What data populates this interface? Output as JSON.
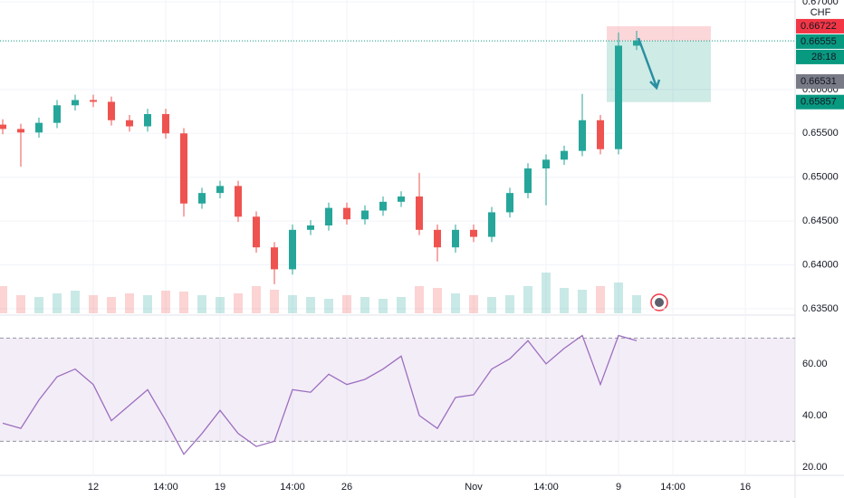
{
  "chart_data": {
    "type": "candlestick",
    "currency": "CHF",
    "categories": [
      null,
      null,
      null,
      null,
      null,
      "12",
      null,
      null,
      null,
      "14:00",
      null,
      null,
      "19",
      null,
      null,
      null,
      "14:00",
      null,
      null,
      "26",
      null,
      null,
      null,
      null,
      null,
      null,
      "Nov",
      null,
      null,
      null,
      "14:00",
      null,
      null,
      null,
      "9",
      null,
      null,
      "14:00",
      null,
      null,
      null,
      "16"
    ],
    "open": [
      0.656,
      0.6555,
      0.6551,
      0.6562,
      0.6582,
      0.6588,
      0.6586,
      0.6565,
      0.6558,
      0.6572,
      0.655,
      0.647,
      0.6482,
      0.649,
      0.6455,
      0.642,
      0.6395,
      0.644,
      0.6445,
      0.6465,
      0.6452,
      0.6462,
      0.6472,
      0.6478,
      0.644,
      0.642,
      0.644,
      0.6432,
      0.646,
      0.6482,
      0.651,
      0.652,
      0.653,
      0.6565,
      0.6532,
      0.665,
      null,
      null,
      null,
      null,
      null,
      null
    ],
    "high": [
      0.6566,
      0.6561,
      0.6568,
      0.6588,
      0.6594,
      0.6594,
      0.6592,
      0.6571,
      0.6578,
      0.6578,
      0.6556,
      0.6488,
      0.6496,
      0.6496,
      0.6461,
      0.6426,
      0.6446,
      0.6451,
      0.6471,
      0.6471,
      0.6468,
      0.6478,
      0.6484,
      0.6505,
      0.6446,
      0.6446,
      0.6446,
      0.6466,
      0.6488,
      0.6516,
      0.6526,
      0.6536,
      0.6595,
      0.6571,
      0.6665,
      0.6667,
      null,
      null,
      null,
      null,
      null,
      null
    ],
    "low": [
      0.6549,
      0.6512,
      0.6545,
      0.6556,
      0.6576,
      0.658,
      0.6559,
      0.6552,
      0.6552,
      0.6544,
      0.6455,
      0.6464,
      0.6476,
      0.6449,
      0.6414,
      0.6378,
      0.6389,
      0.6434,
      0.6439,
      0.6446,
      0.6446,
      0.6456,
      0.6466,
      0.6434,
      0.6404,
      0.6414,
      0.6426,
      0.6426,
      0.6454,
      0.6476,
      0.6468,
      0.6514,
      0.6524,
      0.6526,
      0.6526,
      0.6645,
      null,
      null,
      null,
      null,
      null,
      null
    ],
    "close": [
      0.6555,
      0.6551,
      0.6562,
      0.6582,
      0.6588,
      0.6586,
      0.6565,
      0.6558,
      0.6572,
      0.655,
      0.647,
      0.6482,
      0.649,
      0.6455,
      0.642,
      0.6395,
      0.644,
      0.6445,
      0.6465,
      0.6452,
      0.6462,
      0.6472,
      0.6478,
      0.644,
      0.642,
      0.644,
      0.6432,
      0.646,
      0.6482,
      0.651,
      0.652,
      0.653,
      0.6565,
      0.6532,
      0.665,
      0.6656,
      null,
      null,
      null,
      null,
      null,
      null
    ],
    "volume": [
      30,
      20,
      18,
      22,
      25,
      20,
      18,
      22,
      20,
      25,
      24,
      20,
      18,
      22,
      30,
      26,
      20,
      18,
      16,
      20,
      18,
      16,
      18,
      30,
      28,
      22,
      20,
      18,
      20,
      30,
      45,
      28,
      26,
      30,
      34,
      20,
      null,
      null,
      null,
      null,
      null,
      null
    ],
    "up_color": "#26a69a",
    "down_color": "#ef5350",
    "ylim": [
      0.635,
      0.67
    ],
    "yticks": [
      {
        "value": 0.67,
        "label": "0.67000"
      },
      {
        "value": 0.66,
        "label": "0.66000"
      },
      {
        "value": 0.655,
        "label": "0.65500"
      },
      {
        "value": 0.65,
        "label": "0.65000"
      },
      {
        "value": 0.645,
        "label": "0.64500"
      },
      {
        "value": 0.64,
        "label": "0.64000"
      },
      {
        "value": 0.635,
        "label": "0.63500"
      }
    ],
    "price_tags": [
      {
        "value": 0.66722,
        "label": "0.66722",
        "color": "#f23645"
      },
      {
        "value": 0.66555,
        "label": "0.66555",
        "color": "#089981"
      },
      {
        "value": 0.66531,
        "label": "0.66531",
        "color": "#787b86"
      },
      {
        "value": 0.65857,
        "label": "0.65857",
        "color": "#089981"
      }
    ],
    "countdown": "28:18",
    "rsi": {
      "values": [
        37,
        35,
        46,
        55,
        58,
        52,
        38,
        44,
        50,
        38,
        25,
        33,
        42,
        33,
        28,
        30,
        50,
        49,
        56,
        52,
        54,
        58,
        63,
        40,
        35,
        47,
        48,
        58,
        62,
        69,
        60,
        66,
        71,
        52,
        71,
        69,
        null,
        null,
        null,
        null,
        null,
        null
      ],
      "ylim": [
        16.8,
        78.2
      ],
      "yticks": [
        {
          "value": 60,
          "label": "60.00"
        },
        {
          "value": 40,
          "label": "40.00"
        },
        {
          "value": 20,
          "label": "20.00"
        }
      ],
      "band": [
        30,
        70
      ],
      "color": "#9c6fbf"
    }
  }
}
